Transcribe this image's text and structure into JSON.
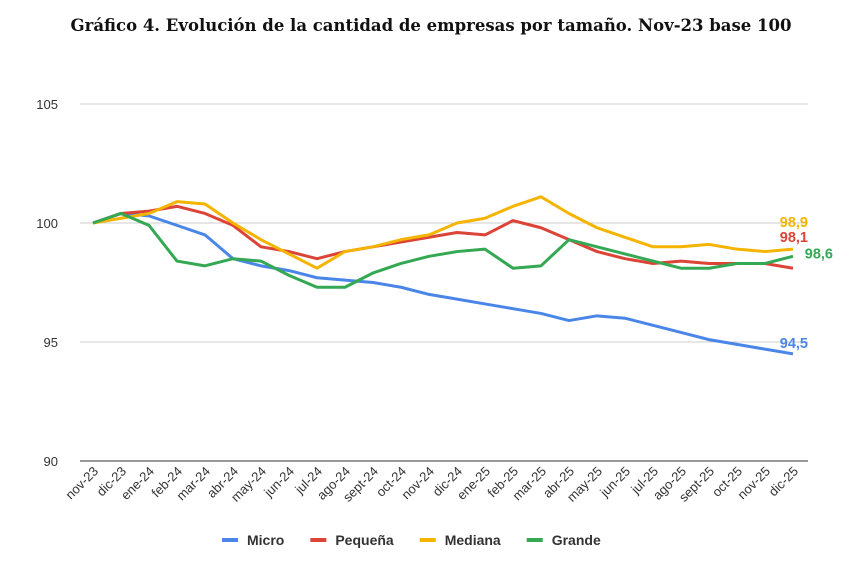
{
  "chart_data": {
    "type": "line",
    "title": "Gráfico 4. Evolución de la cantidad de empresas por tamaño. Nov-23 base 100",
    "xlabel": "",
    "ylabel": "",
    "ylim": [
      90,
      105
    ],
    "yticks": [
      "90",
      "95",
      "100",
      "105"
    ],
    "grid": true,
    "legend_position": "bottom",
    "categories": [
      "nov-23",
      "dic-23",
      "ene-24",
      "feb-24",
      "mar-24",
      "abr-24",
      "may-24",
      "jun-24",
      "jul-24",
      "ago-24",
      "sept-24",
      "oct-24",
      "nov-24",
      "dic-24",
      "ene-25",
      "feb-25",
      "mar-25",
      "abr-25",
      "may-25",
      "jun-25",
      "jul-25",
      "ago-25",
      "sept-25",
      "oct-25",
      "nov-25",
      "dic-25"
    ],
    "series": [
      {
        "name": "Micro",
        "color": "#4a86e8",
        "end_label": "94,5",
        "values": [
          100,
          100.4,
          100.3,
          99.9,
          99.5,
          98.5,
          98.2,
          98.0,
          97.7,
          97.6,
          97.5,
          97.3,
          97.0,
          96.8,
          96.6,
          96.4,
          96.2,
          95.9,
          96.1,
          96.0,
          95.7,
          95.4,
          95.1,
          94.9,
          94.7,
          94.5
        ]
      },
      {
        "name": "Pequeña",
        "color": "#db4437",
        "end_label": "98,1",
        "values": [
          100,
          100.4,
          100.5,
          100.7,
          100.4,
          99.9,
          99.0,
          98.8,
          98.5,
          98.8,
          99.0,
          99.2,
          99.4,
          99.6,
          99.5,
          100.1,
          99.8,
          99.3,
          98.8,
          98.5,
          98.3,
          98.4,
          98.3,
          98.3,
          98.3,
          98.1
        ]
      },
      {
        "name": "Mediana",
        "color": "#f4b400",
        "end_label": "98,9",
        "values": [
          100,
          100.2,
          100.4,
          100.9,
          100.8,
          100.0,
          99.3,
          98.7,
          98.1,
          98.8,
          99.0,
          99.3,
          99.5,
          100.0,
          100.2,
          100.7,
          101.1,
          100.4,
          99.8,
          99.4,
          99.0,
          99.0,
          99.1,
          98.9,
          98.8,
          98.9
        ]
      },
      {
        "name": "Grande",
        "color": "#34a853",
        "end_label": "98,6",
        "values": [
          100,
          100.4,
          99.9,
          98.4,
          98.2,
          98.5,
          98.4,
          97.8,
          97.3,
          97.3,
          97.9,
          98.3,
          98.6,
          98.8,
          98.9,
          98.1,
          98.2,
          99.3,
          99.0,
          98.7,
          98.4,
          98.1,
          98.1,
          98.3,
          98.3,
          98.6
        ]
      }
    ]
  }
}
